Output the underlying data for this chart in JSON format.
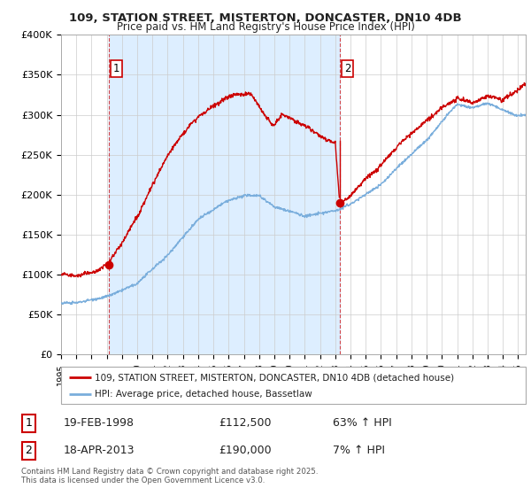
{
  "title": "109, STATION STREET, MISTERTON, DONCASTER, DN10 4DB",
  "subtitle": "Price paid vs. HM Land Registry's House Price Index (HPI)",
  "legend_property": "109, STATION STREET, MISTERTON, DONCASTER, DN10 4DB (detached house)",
  "legend_hpi": "HPI: Average price, detached house, Bassetlaw",
  "footer": "Contains HM Land Registry data © Crown copyright and database right 2025.\nThis data is licensed under the Open Government Licence v3.0.",
  "annotation1_label": "1",
  "annotation1_date": "19-FEB-1998",
  "annotation1_price": "£112,500",
  "annotation1_hpi": "63% ↑ HPI",
  "annotation2_label": "2",
  "annotation2_date": "18-APR-2013",
  "annotation2_price": "£190,000",
  "annotation2_hpi": "7% ↑ HPI",
  "property_color": "#cc0000",
  "hpi_color": "#7aaedc",
  "shade_color": "#ddeeff",
  "background_color": "#ffffff",
  "grid_color": "#cccccc",
  "ylim": [
    0,
    400000
  ],
  "yticks": [
    0,
    50000,
    100000,
    150000,
    200000,
    250000,
    300000,
    350000,
    400000
  ],
  "ytick_labels": [
    "£0",
    "£50K",
    "£100K",
    "£150K",
    "£200K",
    "£250K",
    "£300K",
    "£350K",
    "£400K"
  ],
  "point1_x": 1998.12,
  "point1_y": 112500,
  "point2_x": 2013.29,
  "point2_y": 190000,
  "vline1_x": 1998.12,
  "vline2_x": 2013.29,
  "xlim_left": 1995.0,
  "xlim_right": 2025.5
}
